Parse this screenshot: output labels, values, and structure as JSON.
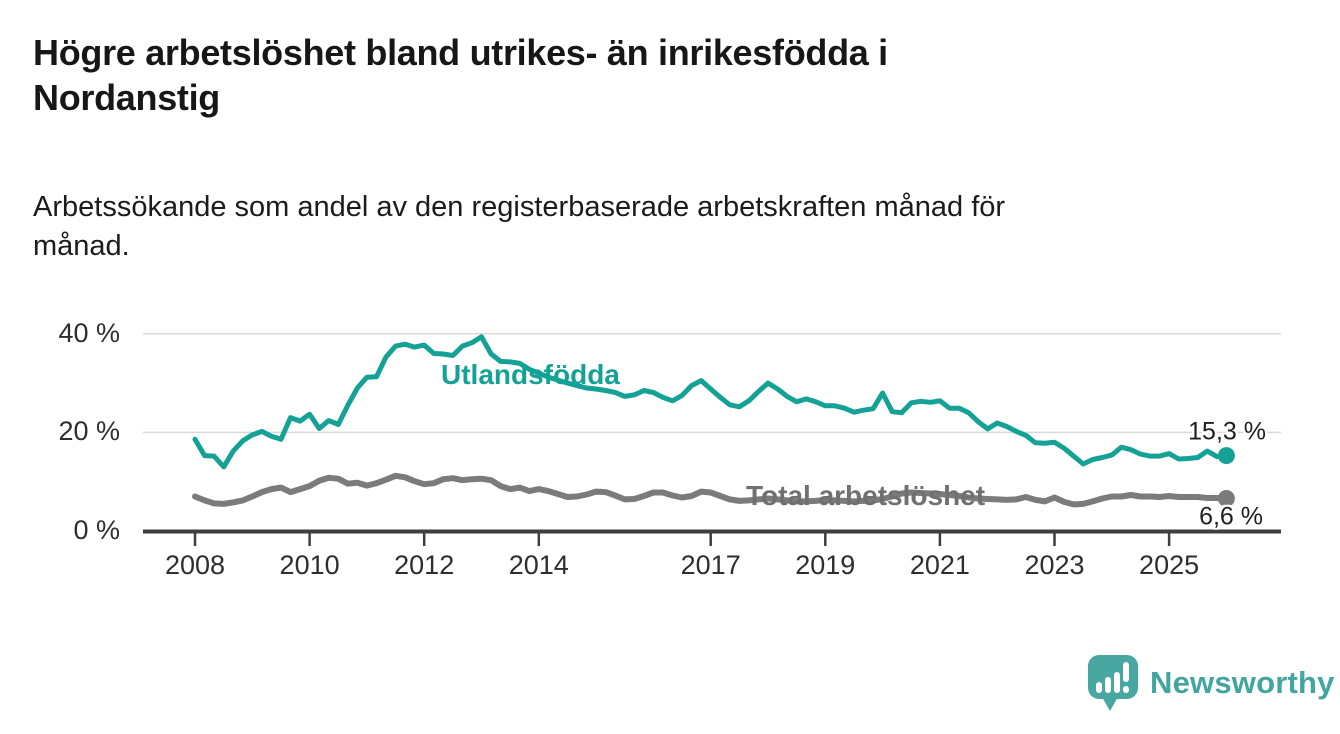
{
  "title": {
    "lines": [
      "Högre arbetslöshet bland utrikes- än inrikesfödda i",
      "Nordanstig"
    ]
  },
  "subtitle": {
    "lines": [
      "Arbetssökande som andel av den registerbaserade arbetskraften månad för",
      "månad."
    ]
  },
  "colors": {
    "accent_teal": "#14a296",
    "line_gray": "#7b7b7b",
    "label_gray": "#707070",
    "grid": "#d9d9d9",
    "axis": "#3e3e3e",
    "tick_text": "#2e2e2e",
    "end_label_text": "#1f1f1f",
    "brand_teal": "#45a6a0"
  },
  "chart_data": {
    "type": "line",
    "title": "Högre arbetslöshet bland utrikes- än inrikesfödda i Nordanstig",
    "subtitle": "Arbetssökande som andel av den registerbaserade arbetskraften månad för månad.",
    "unit": "%",
    "grid": "horizontal",
    "legend": "inline-labels",
    "x_axis": {
      "tick_labels": [
        "2008",
        "2010",
        "2012",
        "2014",
        "2017",
        "2019",
        "2021",
        "2023",
        "2025"
      ],
      "tick_values": [
        2008,
        2010,
        2012,
        2014,
        2017,
        2019,
        2021,
        2023,
        2025
      ],
      "range": [
        2007.6,
        2026.3
      ]
    },
    "y_axis": {
      "tick_labels": [
        "0 %",
        "20 %",
        "40 %"
      ],
      "tick_values": [
        0,
        20,
        40
      ],
      "range": [
        0,
        42
      ]
    },
    "series": [
      {
        "name": "Utlandsfödda",
        "color": "#14a296",
        "end_label": "15,3 %",
        "end_value": 15.3,
        "x_start": 2008.0,
        "x_step_years": 0.166667,
        "values": [
          18.6,
          15.3,
          15.2,
          13.0,
          16.2,
          18.3,
          19.5,
          20.2,
          19.2,
          18.6,
          23.0,
          22.3,
          23.7,
          20.8,
          22.4,
          21.6,
          25.5,
          29.0,
          31.2,
          31.3,
          35.3,
          37.5,
          37.9,
          37.3,
          37.7,
          36.0,
          35.9,
          35.6,
          37.5,
          38.2,
          39.4,
          35.9,
          34.4,
          34.3,
          34.0,
          32.8,
          32.0,
          31.2,
          30.6,
          30.0,
          29.5,
          29.0,
          28.8,
          28.5,
          28.1,
          27.3,
          27.6,
          28.5,
          28.1,
          27.1,
          26.4,
          27.5,
          29.5,
          30.5,
          28.8,
          27.1,
          25.6,
          25.2,
          26.4,
          28.3,
          30.0,
          28.8,
          27.3,
          26.2,
          26.8,
          26.2,
          25.4,
          25.4,
          24.9,
          24.1,
          24.5,
          24.8,
          28.0,
          24.2,
          24.0,
          26.0,
          26.3,
          26.1,
          26.4,
          24.9,
          24.9,
          24.0,
          22.2,
          20.7,
          21.9,
          21.2,
          20.2,
          19.4,
          17.9,
          17.8,
          18.0,
          16.8,
          15.2,
          13.6,
          14.5,
          14.9,
          15.4,
          17.0,
          16.5,
          15.6,
          15.2,
          15.2,
          15.7,
          14.6,
          14.7,
          14.9,
          16.2,
          15.1,
          15.3
        ]
      },
      {
        "name": "Total arbetslöshet",
        "color": "#7b7b7b",
        "end_label": "6,6 %",
        "end_value": 6.6,
        "x_start": 2008.0,
        "x_step_years": 0.166667,
        "values": [
          7.0,
          6.2,
          5.6,
          5.5,
          5.8,
          6.2,
          7.0,
          7.9,
          8.5,
          8.8,
          7.9,
          8.5,
          9.1,
          10.2,
          10.8,
          10.6,
          9.6,
          9.8,
          9.2,
          9.7,
          10.4,
          11.2,
          10.9,
          10.1,
          9.5,
          9.7,
          10.5,
          10.7,
          10.3,
          10.5,
          10.6,
          10.3,
          9.1,
          8.5,
          8.8,
          8.1,
          8.5,
          8.1,
          7.5,
          6.9,
          7.0,
          7.4,
          8.0,
          7.9,
          7.2,
          6.4,
          6.5,
          7.1,
          7.8,
          7.8,
          7.2,
          6.8,
          7.1,
          8.0,
          7.8,
          7.1,
          6.4,
          6.1,
          6.2,
          6.4,
          6.6,
          6.4,
          6.2,
          6.0,
          6.0,
          6.1,
          6.3,
          6.2,
          6.1,
          6.0,
          6.1,
          6.2,
          6.5,
          7.0,
          7.6,
          7.8,
          7.7,
          7.6,
          7.5,
          7.3,
          7.1,
          6.8,
          6.6,
          6.5,
          6.4,
          6.3,
          6.4,
          6.9,
          6.3,
          6.0,
          6.8,
          5.9,
          5.4,
          5.5,
          6.0,
          6.6,
          7.0,
          7.0,
          7.3,
          7.0,
          7.0,
          6.9,
          7.1,
          6.9,
          6.9,
          6.9,
          6.7,
          6.7,
          6.6
        ]
      }
    ]
  },
  "branding": {
    "name": "Newsworthy",
    "icon": "speech-bubble-bar-chart-icon",
    "color": "#45a6a0"
  }
}
